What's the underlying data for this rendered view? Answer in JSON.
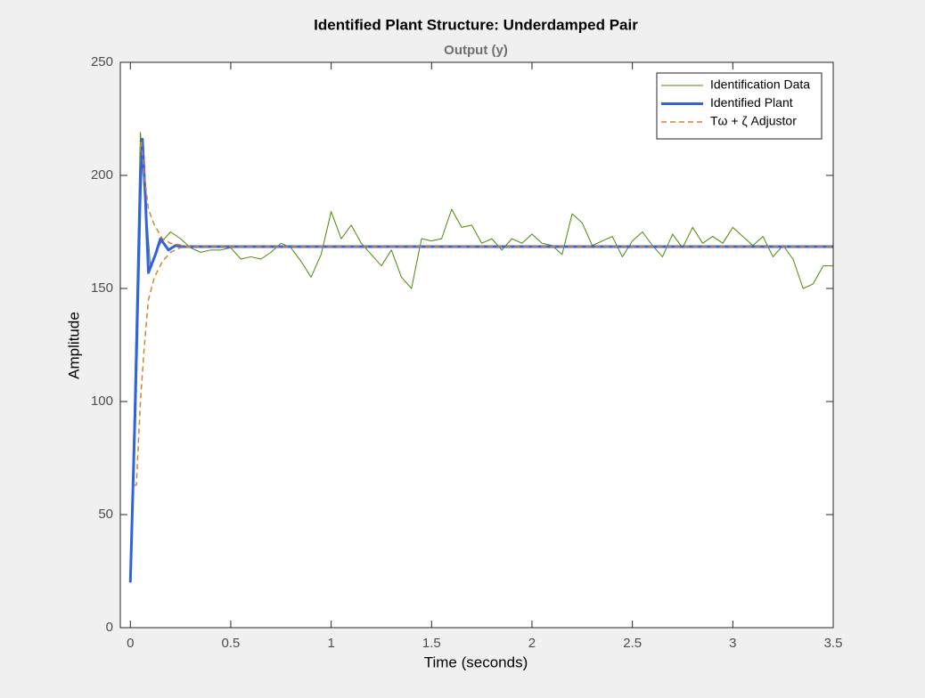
{
  "chart_data": {
    "type": "line",
    "title": "Identified Plant Structure: Underdamped Pair",
    "subtitle": "Output (y)",
    "x_label": "Time (seconds)",
    "y_label": "Amplitude",
    "xlim": [
      -0.05,
      3.5
    ],
    "ylim": [
      0,
      250
    ],
    "xticks": [
      0,
      0.5,
      1,
      1.5,
      2,
      2.5,
      3,
      3.5
    ],
    "yticks": [
      0,
      50,
      100,
      150,
      200,
      250
    ],
    "grid": false,
    "legend": "upper right",
    "series": [
      {
        "name": "Identification Data",
        "color": "#4d8a00",
        "line_width": 1,
        "dashed": false,
        "x": [
          0,
          0.05,
          0.1,
          0.15,
          0.2,
          0.25,
          0.3,
          0.35,
          0.4,
          0.45,
          0.5,
          0.55,
          0.6,
          0.65,
          0.7,
          0.75,
          0.8,
          0.85,
          0.9,
          0.95,
          1,
          1.05,
          1.1,
          1.15,
          1.2,
          1.25,
          1.3,
          1.35,
          1.4,
          1.45,
          1.5,
          1.55,
          1.6,
          1.65,
          1.7,
          1.75,
          1.8,
          1.85,
          1.9,
          1.95,
          2,
          2.05,
          2.1,
          2.15,
          2.2,
          2.25,
          2.3,
          2.35,
          2.4,
          2.45,
          2.5,
          2.55,
          2.6,
          2.65,
          2.7,
          2.75,
          2.8,
          2.85,
          2.9,
          2.95,
          3,
          3.05,
          3.1,
          3.15,
          3.2,
          3.25,
          3.3,
          3.35,
          3.4,
          3.45,
          3.5
        ],
        "values": [
          20,
          219,
          160,
          170,
          175,
          172,
          168,
          166,
          167,
          167,
          168,
          163,
          164,
          163,
          166,
          170,
          168,
          162,
          155,
          165,
          184,
          172,
          178,
          170,
          165,
          160,
          167,
          155,
          150,
          172,
          171,
          172,
          185,
          177,
          178,
          170,
          172,
          167,
          172,
          170,
          174,
          170,
          169,
          165,
          183,
          179,
          169,
          171,
          173,
          164,
          171,
          175,
          169,
          164,
          174,
          168,
          177,
          170,
          173,
          170,
          177,
          173,
          169,
          173,
          164,
          169,
          163,
          150,
          152,
          160,
          160
        ]
      },
      {
        "name": "Identified Plant",
        "color": "#2f62e6",
        "line_width": 3,
        "dashed": false,
        "x": [
          0,
          0.025,
          0.05,
          0.06,
          0.075,
          0.09,
          0.125,
          0.15,
          0.19,
          0.225,
          0.25,
          3.5
        ],
        "values": [
          20,
          100,
          195,
          216,
          190,
          157,
          165,
          172,
          167,
          169,
          168.5,
          168.5
        ]
      },
      {
        "name": "Tω + ζ Adjustor",
        "color": "#d9822b",
        "line_width": 1.5,
        "dashed": true,
        "x": [
          0.02,
          0.03,
          0.05,
          0.07,
          0.09,
          0.12,
          0.16,
          0.2,
          0.25,
          0.3,
          null,
          0.055,
          0.07,
          0.09,
          0.12,
          0.16,
          0.2,
          0.3,
          3.5
        ],
        "values": [
          63,
          63,
          100,
          125,
          145,
          155,
          162,
          166,
          168,
          168.5,
          null,
          215,
          200,
          185,
          178,
          172,
          170,
          168.5,
          168.5
        ]
      }
    ]
  }
}
